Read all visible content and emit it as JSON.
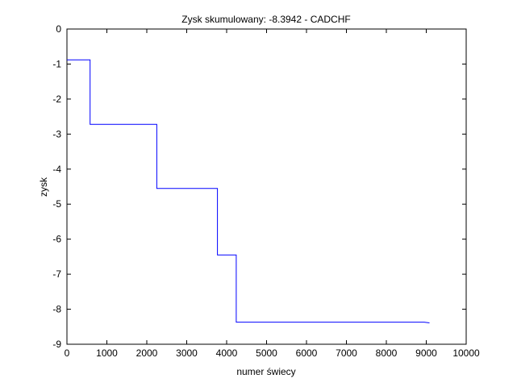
{
  "chart_data": {
    "type": "line",
    "title": "Zysk skumulowany: -8.3942 - CADCHF",
    "xlabel": "numer świecy",
    "ylabel": "zysk",
    "xlim": [
      0,
      10000
    ],
    "ylim": [
      -9,
      0
    ],
    "xticks": [
      0,
      1000,
      2000,
      3000,
      4000,
      5000,
      6000,
      7000,
      8000,
      9000,
      10000
    ],
    "yticks": [
      0,
      -1,
      -2,
      -3,
      -4,
      -5,
      -6,
      -7,
      -8,
      -9
    ],
    "grid": false,
    "series": [
      {
        "color": "#0000ff",
        "x": [
          0,
          580,
          580,
          2250,
          2250,
          3770,
          3770,
          4240,
          4240,
          8950,
          9080
        ],
        "y": [
          -0.88,
          -0.88,
          -2.72,
          -2.72,
          -4.55,
          -4.55,
          -6.45,
          -6.45,
          -8.37,
          -8.37,
          -8.39
        ]
      }
    ]
  }
}
